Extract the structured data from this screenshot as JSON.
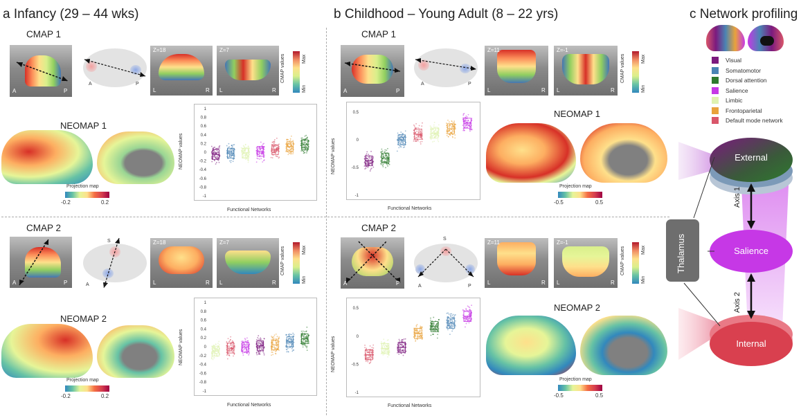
{
  "panels": {
    "a_title": "a Infancy (29 – 44 wks)",
    "b_title": "b Childhood – Young Adult (8 – 22 yrs)",
    "c_title": "c Network profiling"
  },
  "infancy": {
    "cmap1": {
      "label": "CMAP 1",
      "z1": "Z=18",
      "z2": "Z=7",
      "dir_a": "A",
      "dir_p": "P"
    },
    "cmap2": {
      "label": "CMAP 2",
      "z1": "Z=18",
      "z2": "Z=7",
      "dir_a": "A",
      "dir_p": "P",
      "dir_s": "S"
    },
    "neomap1": {
      "label": "NEOMAP 1",
      "proj_label": "Projection map",
      "min": "-0.2",
      "max": "0.2"
    },
    "neomap2": {
      "label": "NEOMAP 2",
      "proj_label": "Projection map",
      "min": "-0.2",
      "max": "0.2"
    }
  },
  "childhood": {
    "cmap1": {
      "label": "CMAP 1",
      "z1": "Z=11",
      "z2": "Z=-1",
      "dir_a": "A",
      "dir_p": "P"
    },
    "cmap2": {
      "label": "CMAP 2",
      "z1": "Z=11",
      "z2": "Z=-1",
      "dir_a": "A",
      "dir_p": "P",
      "dir_s": "S"
    },
    "neomap1": {
      "label": "NEOMAP 1",
      "proj_label": "Projection map",
      "min": "-0.5",
      "max": "0.5"
    },
    "neomap2": {
      "label": "NEOMAP 2",
      "proj_label": "Projection map",
      "min": "-0.5",
      "max": "0.5"
    }
  },
  "common": {
    "cmap_values": "CMAP values",
    "max": "Max",
    "min": "Min",
    "slice_l": "L",
    "slice_r": "R",
    "ylabel": "NEOMAP values",
    "xlabel": "Functional Networks"
  },
  "network_colors": {
    "Visual": "#7b1a7e",
    "Somatomotor": "#4a84b4",
    "Dorsal attention": "#2e7a2e",
    "Salience": "#c638e6",
    "Limbic": "#dff2b0",
    "Frontoparietal": "#e9a23b",
    "Default mode network": "#d9566a"
  },
  "legend": [
    "Visual",
    "Somatomotor",
    "Dorsal attention",
    "Salience",
    "Limbic",
    "Frontoparietal",
    "Default mode network"
  ],
  "profiling": {
    "external": "External",
    "salience": "Salience",
    "internal": "Internal",
    "thalamus": "Thalamus",
    "axis1": "Axis 1",
    "axis2": "Axis 2"
  },
  "chart_data": [
    {
      "type": "scatter",
      "ylim": [
        -1,
        1
      ],
      "yticks": [
        "1",
        "0.8",
        "0.6",
        "0.4",
        "0.2",
        "0",
        "-0.2",
        "-0.4",
        "-0.6",
        "-0.8",
        "-1"
      ],
      "categories": [
        "Visual",
        "Somatomotor",
        "Limbic",
        "Salience",
        "Default mode network",
        "Frontoparietal",
        "Dorsal attention"
      ],
      "values": [
        -0.05,
        -0.02,
        -0.02,
        0.02,
        0.06,
        0.13,
        0.17
      ]
    },
    {
      "type": "scatter",
      "ylim": [
        -1,
        1
      ],
      "yticks": [
        "1",
        "0.8",
        "0.6",
        "0.4",
        "0.2",
        "0",
        "-0.2",
        "-0.4",
        "-0.6",
        "-0.8",
        "-1"
      ],
      "categories": [
        "Limbic",
        "Default mode network",
        "Salience",
        "Visual",
        "Frontoparietal",
        "Somatomotor",
        "Dorsal attention"
      ],
      "values": [
        -0.1,
        -0.03,
        -0.01,
        0.02,
        0.04,
        0.11,
        0.18
      ]
    },
    {
      "type": "scatter",
      "ylim": [
        -1,
        0.6
      ],
      "yticks": [
        "0.5",
        "0",
        "-0.5",
        "-1"
      ],
      "categories": [
        "Visual",
        "Dorsal attention",
        "Somatomotor",
        "Default mode network",
        "Limbic",
        "Frontoparietal",
        "Salience"
      ],
      "values": [
        -0.38,
        -0.33,
        0.0,
        0.1,
        0.12,
        0.2,
        0.3
      ]
    },
    {
      "type": "scatter",
      "ylim": [
        -1,
        0.6
      ],
      "yticks": [
        "0.5",
        "0",
        "-0.5",
        "-1"
      ],
      "categories": [
        "Default mode network",
        "Limbic",
        "Visual",
        "Frontoparietal",
        "Dorsal attention",
        "Somatomotor",
        "Salience"
      ],
      "values": [
        -0.33,
        -0.22,
        -0.2,
        0.05,
        0.17,
        0.23,
        0.35
      ]
    }
  ]
}
